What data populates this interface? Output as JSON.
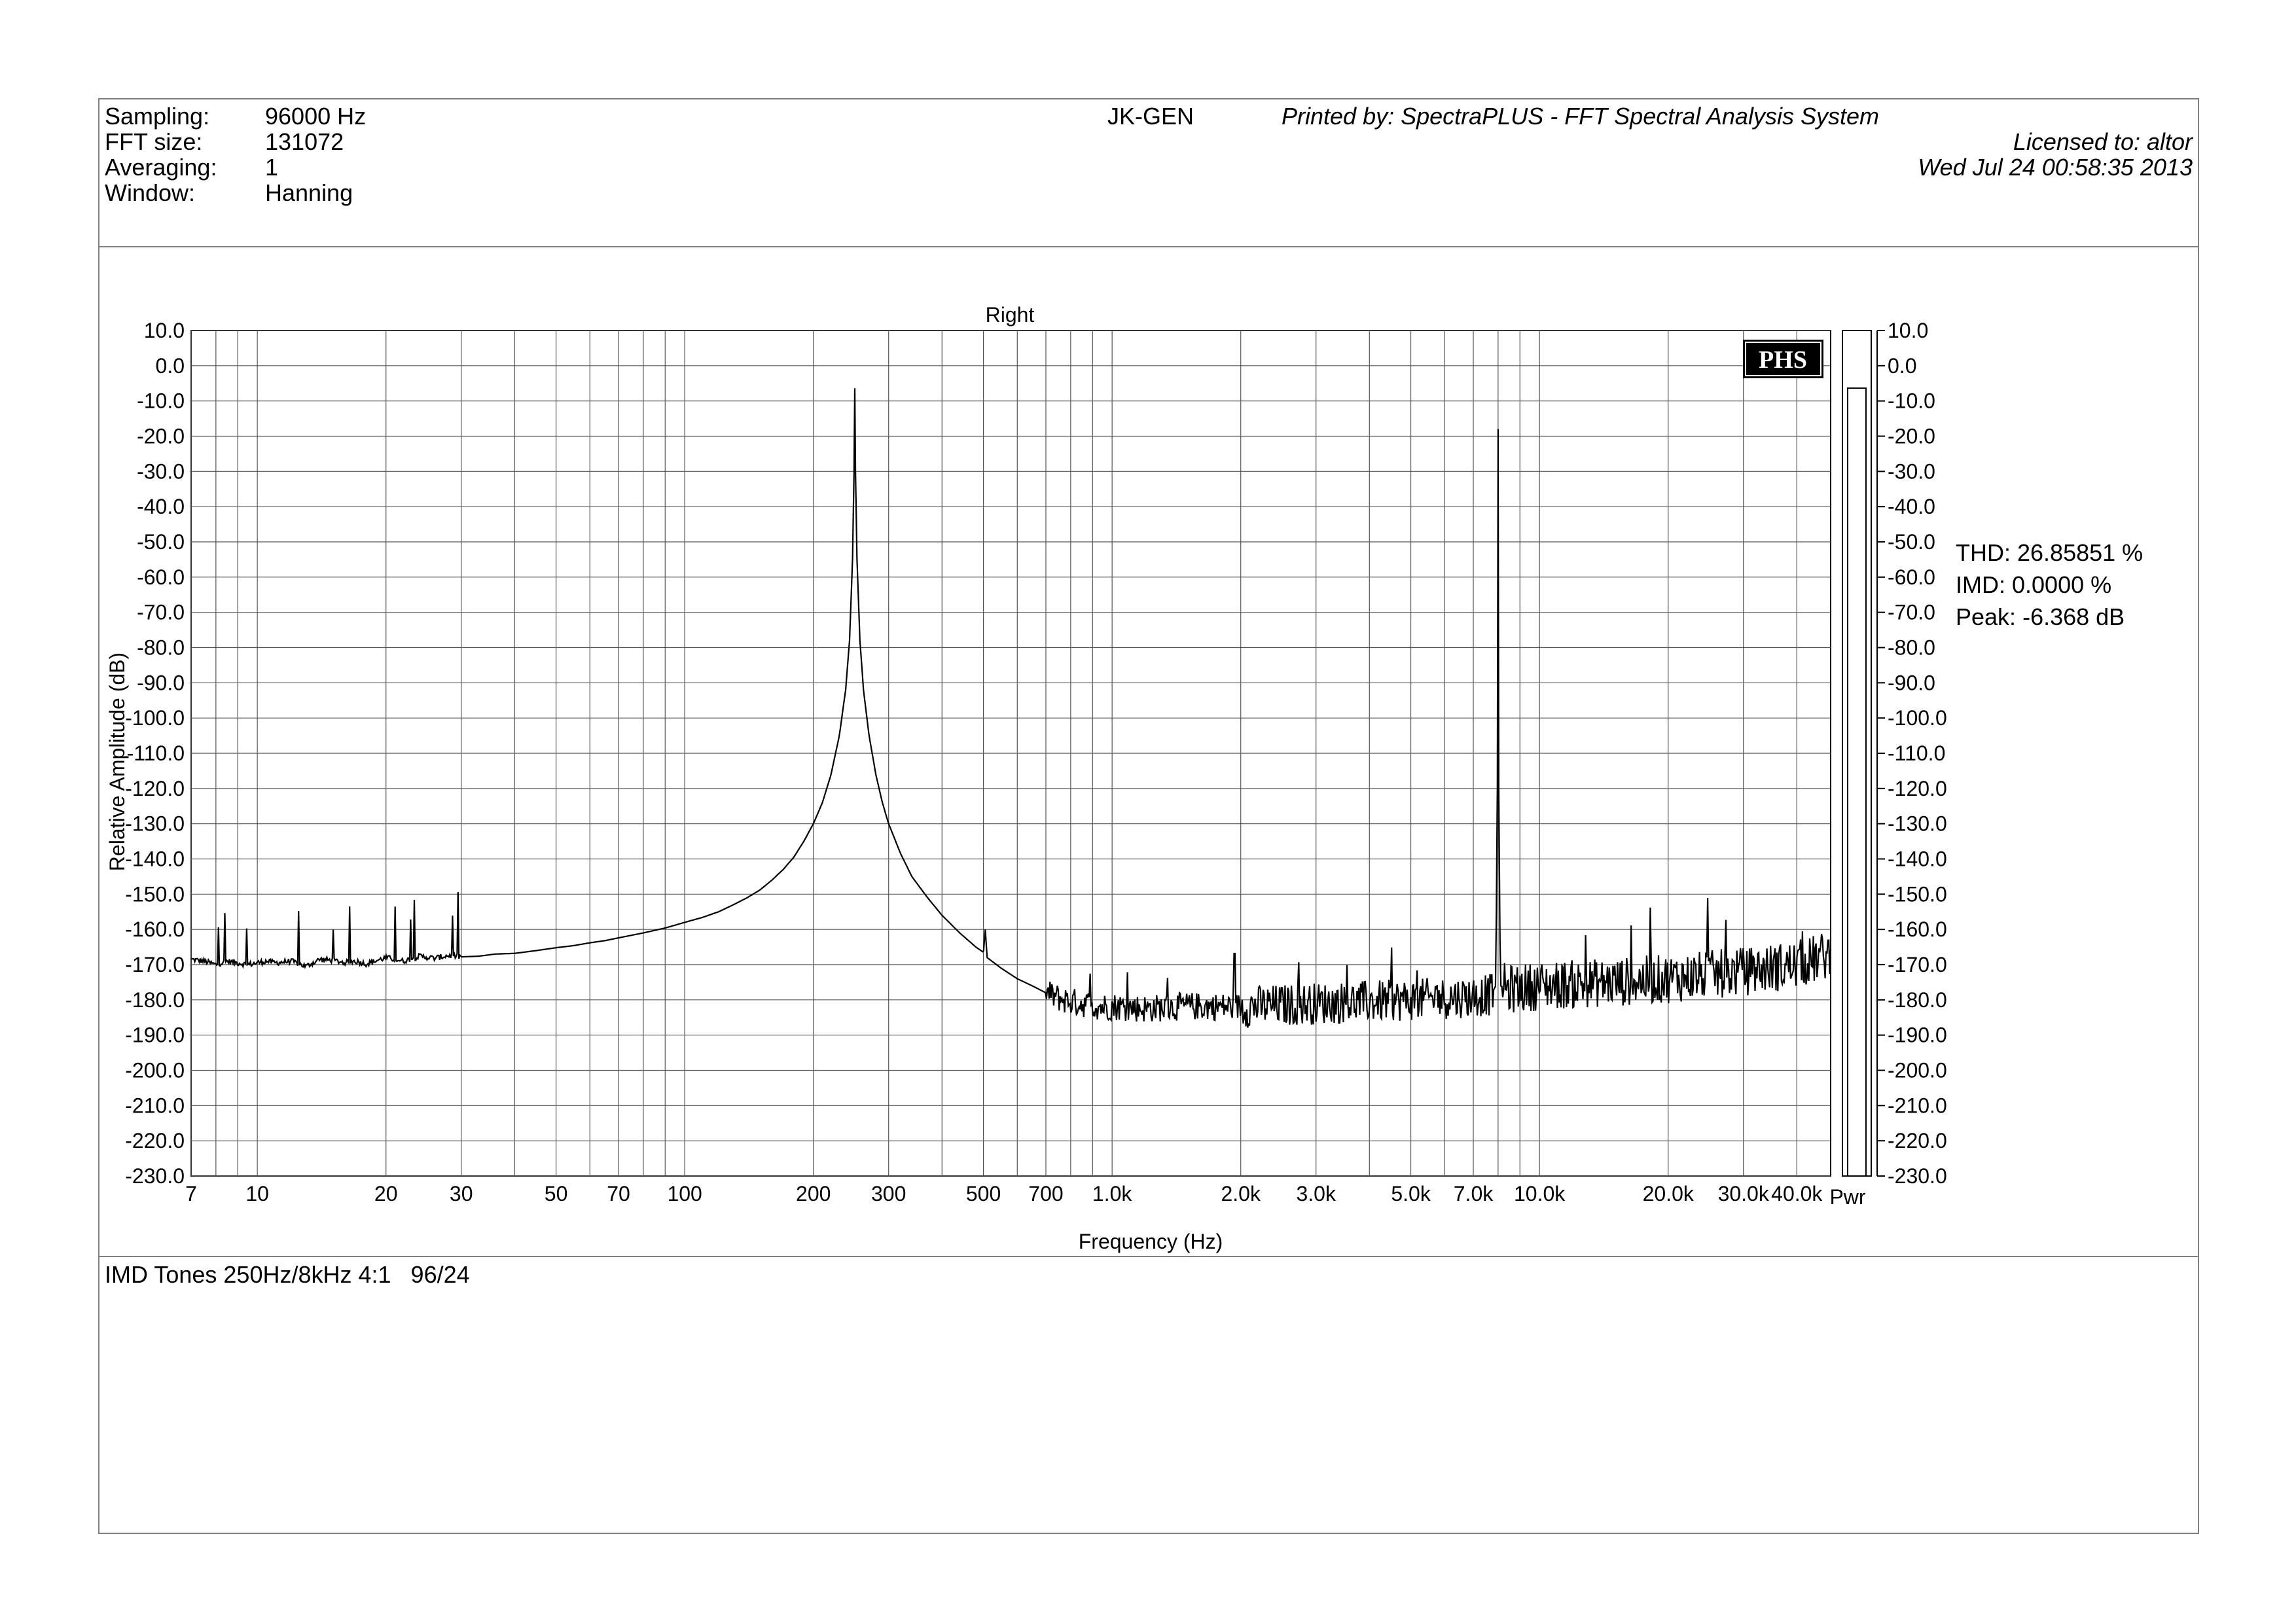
{
  "header": {
    "rows": [
      {
        "label": "Sampling:",
        "value": "96000 Hz"
      },
      {
        "label": "FFT size:",
        "value": "131072"
      },
      {
        "label": "Averaging:",
        "value": "1"
      },
      {
        "label": "Window:",
        "value": "Hanning"
      }
    ],
    "device": "JK-GEN",
    "printed_by": "Printed by: SpectraPLUS - FFT Spectral Analysis System",
    "licensed_to": "Licensed to: altor",
    "datetime": "Wed Jul 24 00:58:35 2013"
  },
  "readouts": [
    {
      "label": "THD:",
      "value": "26.85851 %"
    },
    {
      "label": "IMD:",
      "value": "0.0000 %"
    },
    {
      "label": "Peak:",
      "value": "-6.368 dB"
    }
  ],
  "logo": "PHS",
  "power_bar": {
    "label": "Pwr",
    "level_db": -6.368
  },
  "footer": {
    "note": "IMD Tones 250Hz/8kHz 4:1   96/24"
  },
  "chart_data": {
    "type": "line",
    "title": "Right",
    "xlabel": "Frequency (Hz)",
    "ylabel": "Relative Amplitude (dB)",
    "x_scale": "log",
    "xlim": [
      7,
      48000
    ],
    "ylim": [
      -230,
      10
    ],
    "grid": true,
    "x_ticks": [
      {
        "v": 7,
        "label": "7"
      },
      {
        "v": 10,
        "label": "10"
      },
      {
        "v": 20,
        "label": "20"
      },
      {
        "v": 30,
        "label": "30"
      },
      {
        "v": 50,
        "label": "50"
      },
      {
        "v": 70,
        "label": "70"
      },
      {
        "v": 100,
        "label": "100"
      },
      {
        "v": 200,
        "label": "200"
      },
      {
        "v": 300,
        "label": "300"
      },
      {
        "v": 500,
        "label": "500"
      },
      {
        "v": 700,
        "label": "700"
      },
      {
        "v": 1000,
        "label": "1.0k"
      },
      {
        "v": 2000,
        "label": "2.0k"
      },
      {
        "v": 3000,
        "label": "3.0k"
      },
      {
        "v": 5000,
        "label": "5.0k"
      },
      {
        "v": 7000,
        "label": "7.0k"
      },
      {
        "v": 10000,
        "label": "10.0k"
      },
      {
        "v": 20000,
        "label": "20.0k"
      },
      {
        "v": 30000,
        "label": "30.0k"
      },
      {
        "v": 40000,
        "label": "40.0k"
      }
    ],
    "y_ticks": [
      "10.0",
      "0.0",
      "-10.0",
      "-20.0",
      "-30.0",
      "-40.0",
      "-50.0",
      "-60.0",
      "-70.0",
      "-80.0",
      "-90.0",
      "-100.0",
      "-110.0",
      "-120.0",
      "-130.0",
      "-140.0",
      "-150.0",
      "-160.0",
      "-170.0",
      "-180.0",
      "-190.0",
      "-200.0",
      "-210.0",
      "-220.0",
      "-230.0"
    ],
    "right_y_ticks": [
      "10.0",
      "0.0",
      "-10.0",
      "-20.0",
      "-30.0",
      "-40.0",
      "-50.0",
      "-60.0",
      "-70.0",
      "-80.0",
      "-90.0",
      "-100.0",
      "-110.0",
      "-120.0",
      "-130.0",
      "-140.0",
      "-150.0",
      "-160.0",
      "-170.0",
      "-180.0",
      "-190.0",
      "-200.0",
      "-210.0",
      "-220.0",
      "-230.0"
    ],
    "series": [
      {
        "points": [
          [
            7,
            -168.5
          ],
          [
            7.5,
            -169
          ],
          [
            8,
            -170
          ],
          [
            8.5,
            -169
          ],
          [
            9,
            -169.5
          ],
          [
            9.5,
            -170
          ],
          [
            10,
            -169.5
          ],
          [
            10.5,
            -169
          ],
          [
            11,
            -169.5
          ],
          [
            12,
            -169
          ],
          [
            13,
            -170.5
          ],
          [
            14,
            -168.5
          ],
          [
            15,
            -168.8
          ],
          [
            16,
            -169.4
          ],
          [
            17,
            -169
          ],
          [
            18,
            -169.8
          ],
          [
            20,
            -168
          ],
          [
            22,
            -169
          ],
          [
            24,
            -167.6
          ],
          [
            26,
            -168.2
          ],
          [
            28,
            -167.4
          ],
          [
            30,
            -167.8
          ],
          [
            33,
            -167.6
          ],
          [
            36,
            -167
          ],
          [
            40,
            -166.8
          ],
          [
            45,
            -166
          ],
          [
            50,
            -165.2
          ],
          [
            55,
            -164.6
          ],
          [
            60,
            -163.8
          ],
          [
            65,
            -163.2
          ],
          [
            70,
            -162.4
          ],
          [
            80,
            -161
          ],
          [
            90,
            -159.6
          ],
          [
            100,
            -158
          ],
          [
            110,
            -156.6
          ],
          [
            120,
            -155
          ],
          [
            130,
            -153
          ],
          [
            140,
            -151
          ],
          [
            150,
            -148.8
          ],
          [
            160,
            -146
          ],
          [
            170,
            -143
          ],
          [
            180,
            -139.5
          ],
          [
            190,
            -135
          ],
          [
            200,
            -130
          ],
          [
            210,
            -124
          ],
          [
            220,
            -116
          ],
          [
            230,
            -105
          ],
          [
            238,
            -92
          ],
          [
            243,
            -78
          ],
          [
            247,
            -55
          ],
          [
            249,
            -30
          ],
          [
            250,
            -6.4
          ],
          [
            251,
            -30
          ],
          [
            253,
            -55
          ],
          [
            257,
            -78
          ],
          [
            262,
            -92
          ],
          [
            270,
            -105
          ],
          [
            280,
            -116
          ],
          [
            290,
            -124
          ],
          [
            300,
            -130
          ],
          [
            320,
            -138.5
          ],
          [
            340,
            -145
          ],
          [
            370,
            -151
          ],
          [
            400,
            -156
          ],
          [
            440,
            -161
          ],
          [
            480,
            -165
          ],
          [
            500,
            -166.5
          ],
          [
            505,
            -160
          ],
          [
            510,
            -168
          ],
          [
            550,
            -171
          ],
          [
            600,
            -174
          ],
          [
            650,
            -176
          ],
          [
            700,
            -178
          ],
          [
            750,
            -179.5
          ],
          [
            800,
            -180.5
          ],
          [
            850,
            -181
          ],
          [
            900,
            -181.5
          ],
          [
            950,
            -182
          ],
          [
            1000,
            -181.8
          ],
          [
            1200,
            -182.5
          ],
          [
            1500,
            -181.8
          ],
          [
            2000,
            -182
          ],
          [
            2500,
            -181.5
          ],
          [
            3000,
            -181
          ],
          [
            4000,
            -180.5
          ],
          [
            5000,
            -180
          ],
          [
            6000,
            -179.5
          ],
          [
            7000,
            -179
          ],
          [
            7700,
            -178.5
          ],
          [
            7900,
            -176
          ],
          [
            7970,
            -120
          ],
          [
            8000,
            -18
          ],
          [
            8030,
            -120
          ],
          [
            8100,
            -176
          ],
          [
            8500,
            -177
          ],
          [
            10000,
            -176
          ],
          [
            15000,
            -175
          ],
          [
            20000,
            -174
          ],
          [
            30000,
            -172
          ],
          [
            40000,
            -170
          ],
          [
            44000,
            -168.5
          ],
          [
            48000,
            -167
          ]
        ]
      }
    ]
  }
}
